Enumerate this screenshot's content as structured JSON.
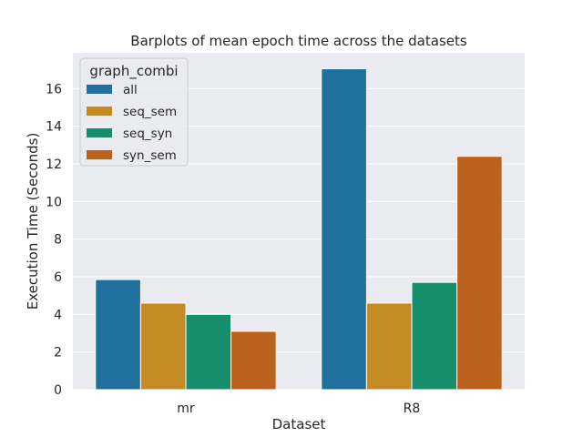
{
  "chart_data": {
    "type": "bar",
    "title": "Barplots of mean epoch time across the datasets",
    "xlabel": "Dataset",
    "ylabel": "Execution Time (Seconds)",
    "categories": [
      "mr",
      "R8"
    ],
    "ylim": [
      0,
      17.9
    ],
    "yticks": [
      0,
      2,
      4,
      6,
      8,
      10,
      12,
      14,
      16
    ],
    "grid": true,
    "background": "#eaeaf2",
    "legend": {
      "title": "graph_combi",
      "placement": "top-left"
    },
    "series": [
      {
        "name": "all",
        "color": "#1f6f9f",
        "values": [
          5.85,
          17.05
        ]
      },
      {
        "name": "seq_sem",
        "color": "#c68a25",
        "values": [
          4.6,
          4.6
        ]
      },
      {
        "name": "seq_syn",
        "color": "#168e6b",
        "values": [
          4.0,
          5.7
        ]
      },
      {
        "name": "syn_sem",
        "color": "#bb611d",
        "values": [
          3.1,
          12.4
        ]
      }
    ]
  }
}
